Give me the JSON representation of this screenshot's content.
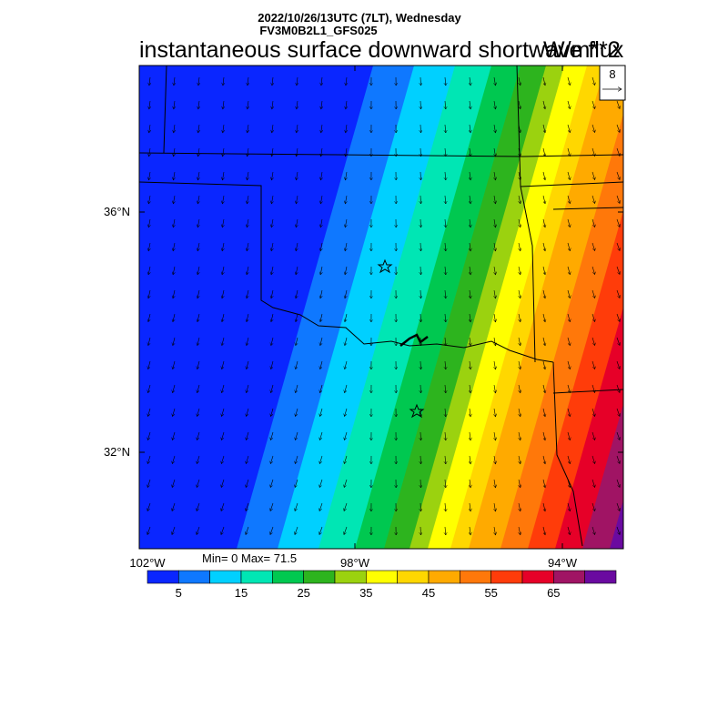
{
  "header": {
    "line1": "2022/10/26/13UTC (7LT), Wednesday",
    "line2": "FV3M0B2L1_GFS025",
    "title": "instantaneous surface downward shortwave flux",
    "units": "W/m**2"
  },
  "vector_ref": {
    "value": "8"
  },
  "axes": {
    "lat_labels": [
      "36°N",
      "32°N"
    ],
    "lon_labels": [
      "102°W",
      "98°W",
      "94°W"
    ]
  },
  "stats": {
    "text": "Min= 0 Max= 71.5"
  },
  "colorbar": {
    "colors": [
      "#0a26ff",
      "#0f78ff",
      "#00d0ff",
      "#00e6b4",
      "#00c850",
      "#2db41e",
      "#9bd20f",
      "#ffff00",
      "#ffd700",
      "#ffaa00",
      "#ff780a",
      "#ff3c0a",
      "#e60028",
      "#a01464",
      "#6a0aa0"
    ],
    "tick_labels": [
      "5",
      "15",
      "25",
      "35",
      "45",
      "55",
      "65"
    ]
  },
  "field": {
    "description_values_min": 0,
    "description_values_max": 71.5
  },
  "markers": [
    "star-1",
    "star-2"
  ]
}
